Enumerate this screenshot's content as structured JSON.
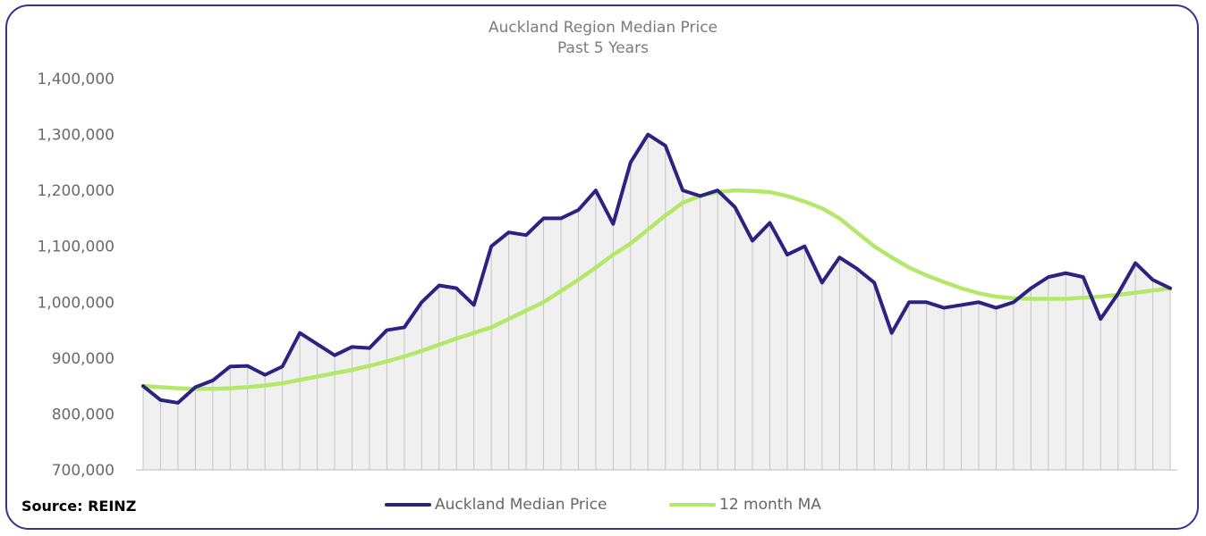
{
  "source_label": "Source: REINZ",
  "colors": {
    "series1": "#2b2282",
    "series2": "#b4e86a",
    "area_fill": "#f0f0f0",
    "drop_line": "#c4c4c4",
    "frame": "#3b2f8f"
  },
  "chart_data": {
    "type": "line",
    "title": "Auckland Region Median Price",
    "subtitle": "Past 5 Years",
    "xlabel": "",
    "ylabel": "",
    "ylim": [
      700000,
      1400000
    ],
    "yticks": [
      700000,
      800000,
      900000,
      1000000,
      1100000,
      1200000,
      1300000,
      1400000
    ],
    "ytick_labels": [
      "700,000",
      "800,000",
      "900,000",
      "1,000,000",
      "1,100,000",
      "1,200,000",
      "1,300,000",
      "1,400,000"
    ],
    "grid": false,
    "legend_position": "bottom",
    "series": [
      {
        "name": "Auckland Median Price",
        "values": [
          850000,
          825000,
          820000,
          848000,
          860000,
          885000,
          886000,
          870000,
          885000,
          945000,
          925000,
          905000,
          920000,
          918000,
          950000,
          955000,
          1000000,
          1030000,
          1025000,
          995000,
          1100000,
          1125000,
          1120000,
          1150000,
          1150000,
          1165000,
          1200000,
          1140000,
          1250000,
          1300000,
          1280000,
          1200000,
          1190000,
          1200000,
          1170000,
          1110000,
          1142000,
          1085000,
          1100000,
          1035000,
          1080000,
          1060000,
          1035000,
          945000,
          1000000,
          1000000,
          990000,
          995000,
          1000000,
          990000,
          1000000,
          1025000,
          1045000,
          1052000,
          1045000,
          970000,
          1015000,
          1070000,
          1040000,
          1025000
        ]
      },
      {
        "name": "12 month MA",
        "values": [
          850000,
          848000,
          846000,
          845000,
          845000,
          846000,
          848000,
          851000,
          855000,
          861000,
          867000,
          873000,
          879000,
          886000,
          894000,
          903000,
          913000,
          924000,
          935000,
          945000,
          955000,
          970000,
          985000,
          1000000,
          1020000,
          1040000,
          1062000,
          1085000,
          1105000,
          1130000,
          1155000,
          1178000,
          1190000,
          1197000,
          1200000,
          1199000,
          1197000,
          1190000,
          1180000,
          1168000,
          1150000,
          1125000,
          1100000,
          1080000,
          1062000,
          1048000,
          1036000,
          1025000,
          1016000,
          1010000,
          1007000,
          1006000,
          1006000,
          1006000,
          1008000,
          1010000,
          1013000,
          1017000,
          1021000,
          1025000
        ]
      }
    ]
  }
}
